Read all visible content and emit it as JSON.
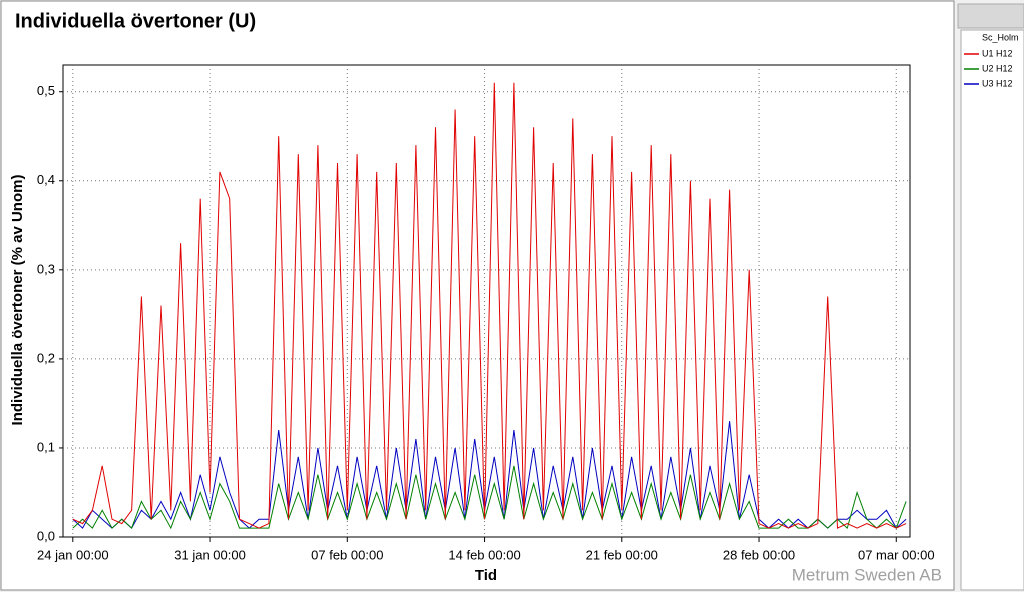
{
  "chart_data": {
    "type": "line",
    "title": "Individuella övertoner (U)",
    "xlabel": "Tid",
    "ylabel": "Individuella övertoner (% av Unom)",
    "watermark": "Metrum Sweden AB",
    "legend_title": "Sc_Holm",
    "legend": "right",
    "grid": true,
    "xlim": [
      -0.5,
      42.7
    ],
    "ylim": [
      0,
      0.53
    ],
    "xticks": [
      {
        "value": 0,
        "label": "24 jan 00:00"
      },
      {
        "value": 7,
        "label": "31 jan 00:00"
      },
      {
        "value": 14,
        "label": "07 feb 00:00"
      },
      {
        "value": 21,
        "label": "14 feb 00:00"
      },
      {
        "value": 28,
        "label": "21 feb 00:00"
      },
      {
        "value": 35,
        "label": "28 feb 00:00"
      },
      {
        "value": 42,
        "label": "07 mar 00:00"
      }
    ],
    "yticks": [
      {
        "value": 0,
        "label": "0,0"
      },
      {
        "value": 0.1,
        "label": "0,1"
      },
      {
        "value": 0.2,
        "label": "0,2"
      },
      {
        "value": 0.3,
        "label": "0,3"
      },
      {
        "value": 0.4,
        "label": "0,4"
      },
      {
        "value": 0.5,
        "label": "0,5"
      }
    ],
    "x": [
      0,
      0.5,
      1,
      1.5,
      2,
      2.5,
      3,
      3.5,
      4,
      4.5,
      5,
      5.5,
      6,
      6.5,
      7,
      7.5,
      8,
      8.5,
      9,
      9.5,
      10,
      10.5,
      11,
      11.5,
      12,
      12.5,
      13,
      13.5,
      14,
      14.5,
      15,
      15.5,
      16,
      16.5,
      17,
      17.5,
      18,
      18.5,
      19,
      19.5,
      20,
      20.5,
      21,
      21.5,
      22,
      22.5,
      23,
      23.5,
      24,
      24.5,
      25,
      25.5,
      26,
      26.5,
      27,
      27.5,
      28,
      28.5,
      29,
      29.5,
      30,
      30.5,
      31,
      31.5,
      32,
      32.5,
      33,
      33.5,
      34,
      34.5,
      35,
      35.5,
      36,
      36.5,
      37,
      37.5,
      38,
      38.5,
      39,
      39.5,
      40,
      40.5,
      41,
      41.5,
      42,
      42.5
    ],
    "series": [
      {
        "name": "U1 H12",
        "color": "#e00000",
        "values": [
          0.02,
          0.015,
          0.03,
          0.08,
          0.02,
          0.015,
          0.03,
          0.27,
          0.02,
          0.26,
          0.03,
          0.33,
          0.04,
          0.38,
          0.05,
          0.41,
          0.38,
          0.02,
          0.015,
          0.01,
          0.015,
          0.45,
          0.02,
          0.43,
          0.03,
          0.44,
          0.02,
          0.42,
          0.03,
          0.43,
          0.02,
          0.41,
          0.03,
          0.42,
          0.02,
          0.44,
          0.03,
          0.46,
          0.02,
          0.48,
          0.03,
          0.45,
          0.02,
          0.51,
          0.03,
          0.51,
          0.02,
          0.46,
          0.03,
          0.42,
          0.02,
          0.47,
          0.03,
          0.43,
          0.02,
          0.45,
          0.03,
          0.41,
          0.02,
          0.44,
          0.03,
          0.43,
          0.02,
          0.4,
          0.03,
          0.38,
          0.02,
          0.39,
          0.03,
          0.3,
          0.015,
          0.01,
          0.015,
          0.01,
          0.015,
          0.01,
          0.015,
          0.27,
          0.01,
          0.015,
          0.01,
          0.015,
          0.01,
          0.015,
          0.01,
          0.015
        ]
      },
      {
        "name": "U2 H12",
        "color": "#008000",
        "values": [
          0.01,
          0.02,
          0.01,
          0.03,
          0.01,
          0.02,
          0.01,
          0.04,
          0.02,
          0.03,
          0.01,
          0.04,
          0.02,
          0.05,
          0.02,
          0.06,
          0.04,
          0.01,
          0.01,
          0.01,
          0.01,
          0.06,
          0.02,
          0.05,
          0.02,
          0.07,
          0.02,
          0.05,
          0.02,
          0.06,
          0.02,
          0.05,
          0.02,
          0.06,
          0.02,
          0.07,
          0.02,
          0.06,
          0.02,
          0.05,
          0.02,
          0.07,
          0.02,
          0.06,
          0.02,
          0.08,
          0.02,
          0.06,
          0.02,
          0.05,
          0.02,
          0.06,
          0.02,
          0.05,
          0.02,
          0.06,
          0.02,
          0.05,
          0.02,
          0.06,
          0.02,
          0.05,
          0.02,
          0.07,
          0.02,
          0.05,
          0.02,
          0.06,
          0.02,
          0.04,
          0.01,
          0.01,
          0.01,
          0.02,
          0.01,
          0.01,
          0.02,
          0.01,
          0.02,
          0.01,
          0.05,
          0.02,
          0.01,
          0.02,
          0.01,
          0.04
        ]
      },
      {
        "name": "U3 H12",
        "color": "#0000c0",
        "values": [
          0.02,
          0.01,
          0.03,
          0.02,
          0.01,
          0.02,
          0.01,
          0.03,
          0.02,
          0.04,
          0.02,
          0.05,
          0.02,
          0.07,
          0.03,
          0.09,
          0.05,
          0.02,
          0.01,
          0.02,
          0.02,
          0.12,
          0.03,
          0.09,
          0.02,
          0.1,
          0.03,
          0.08,
          0.02,
          0.09,
          0.03,
          0.08,
          0.02,
          0.1,
          0.03,
          0.11,
          0.02,
          0.09,
          0.03,
          0.1,
          0.02,
          0.11,
          0.03,
          0.09,
          0.02,
          0.12,
          0.03,
          0.1,
          0.02,
          0.08,
          0.03,
          0.09,
          0.02,
          0.1,
          0.03,
          0.08,
          0.02,
          0.09,
          0.03,
          0.08,
          0.02,
          0.09,
          0.03,
          0.1,
          0.02,
          0.08,
          0.03,
          0.13,
          0.02,
          0.07,
          0.02,
          0.01,
          0.02,
          0.01,
          0.02,
          0.01,
          0.02,
          0.01,
          0.02,
          0.02,
          0.03,
          0.02,
          0.02,
          0.03,
          0.01,
          0.02
        ]
      }
    ]
  }
}
